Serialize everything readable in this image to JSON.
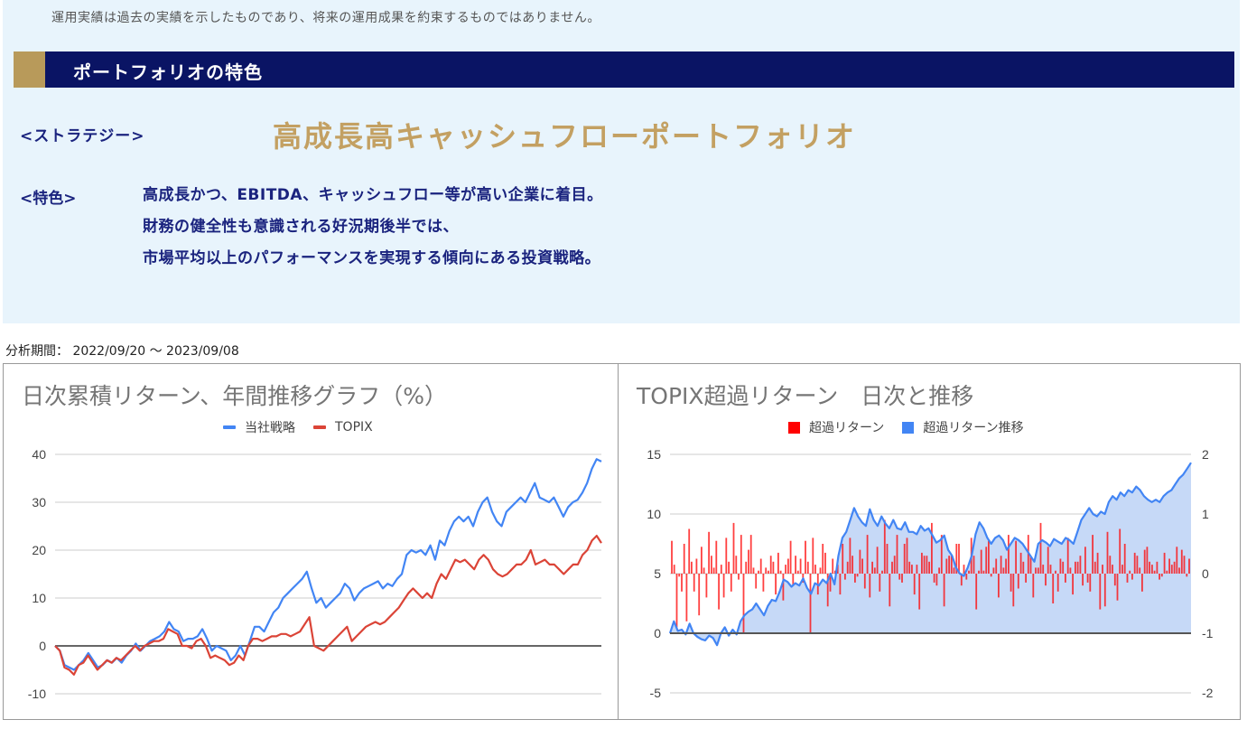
{
  "disclaimer": "運用実績は過去の実績を示したものであり、将来の運用成果を約束するものではありません。",
  "section": {
    "title": "ポートフォリオの特色",
    "colors": {
      "bar": "#0a1464",
      "accent": "#b89a5a"
    }
  },
  "strategy": {
    "label": "<ストラテジー>",
    "name": "高成長高キャッシュフローポートフォリオ"
  },
  "features": {
    "label": "<特色>",
    "lines": [
      "高成長かつ、EBITDA、キャッシュフロー等が高い企業に着目。",
      "財務の健全性も意識される好況期後半では、",
      "市場平均以上のパフォーマンスを実現する傾向にある投資戦略。"
    ]
  },
  "period": "分析期間： 2022/09/20 ～ 2023/09/08",
  "chart_data": [
    {
      "type": "line",
      "title": "日次累積リターン、年間推移グラフ（%）",
      "xlabel": "",
      "ylabel": "",
      "ylim": [
        -10,
        40
      ],
      "yticks": [
        "40",
        "30",
        "20",
        "10",
        "0",
        "-10"
      ],
      "grid": true,
      "legend_position": "top",
      "legend": [
        "当社戦略",
        "TOPIX"
      ],
      "x_range": [
        "2022/09/20",
        "2023/09/08"
      ],
      "series": [
        {
          "name": "当社戦略",
          "color": "#4285f4",
          "values": [
            0,
            -1,
            -4,
            -4.5,
            -5,
            -4,
            -3,
            -1.5,
            -3,
            -4.5,
            -4,
            -3,
            -3.5,
            -2.5,
            -3.5,
            -2,
            -1,
            0.5,
            -1,
            0,
            1,
            1.5,
            2,
            3,
            5,
            3.5,
            3,
            1,
            1.5,
            1.5,
            2,
            3.5,
            1.5,
            -1,
            0,
            -0.5,
            -1,
            -3,
            -2,
            0,
            -2,
            1,
            4,
            4,
            3,
            5,
            7,
            8,
            10,
            11,
            12,
            13,
            14,
            15.5,
            12,
            9,
            10,
            8,
            9,
            10,
            11,
            13,
            12,
            9.5,
            11,
            12,
            12.5,
            13,
            13.5,
            12,
            13,
            12.5,
            14,
            15,
            19,
            20,
            19.5,
            20,
            19,
            21,
            18,
            22,
            21,
            24,
            26,
            27,
            26,
            27,
            25,
            28,
            30,
            31,
            28,
            26,
            25,
            28,
            29,
            30,
            31,
            30,
            32,
            34,
            31,
            30.5,
            30,
            31,
            29,
            27,
            29,
            30,
            30.5,
            32,
            34,
            37,
            39,
            38.5
          ]
        },
        {
          "name": "TOPIX",
          "color": "#db4437",
          "values": [
            0,
            -1,
            -4.5,
            -5,
            -6,
            -4,
            -3.5,
            -2,
            -3.5,
            -5,
            -4,
            -3,
            -3.5,
            -2.5,
            -3,
            -2,
            -1,
            0,
            -1,
            0,
            0.5,
            1,
            1,
            1.5,
            3.5,
            3,
            2.5,
            0,
            0,
            -0.5,
            1,
            1.5,
            0,
            -2.5,
            -2,
            -2.5,
            -3,
            -4,
            -3.5,
            -2,
            -3,
            0,
            1.5,
            1.5,
            1,
            1.5,
            2,
            2,
            2.5,
            2.5,
            2,
            2.5,
            3,
            4.5,
            6,
            0,
            -0.5,
            -1,
            0,
            1,
            2,
            3,
            4,
            1,
            2,
            3,
            4,
            4.5,
            5,
            4.5,
            5,
            6,
            7,
            8,
            9.5,
            11,
            12,
            11,
            10,
            11,
            10,
            13,
            15,
            14,
            16,
            18,
            17.5,
            18,
            17,
            16,
            18,
            19,
            18,
            16,
            15,
            14.5,
            15,
            16,
            17,
            17,
            18,
            20,
            17,
            17.5,
            18,
            17,
            17,
            16,
            15,
            16,
            17,
            17,
            19,
            20,
            22,
            23,
            21.5
          ]
        }
      ]
    },
    {
      "type": "bar+area",
      "title": "TOPIX超過リターン　日次と推移",
      "legend": [
        "超過リターン",
        "超過リターン推移"
      ],
      "legend_position": "top",
      "grid": true,
      "left_axis": {
        "ylim": [
          -5,
          15
        ],
        "yticks": [
          "15",
          "10",
          "5",
          "0",
          "-5"
        ]
      },
      "right_axis": {
        "ylim": [
          -2,
          2
        ],
        "yticks": [
          "2",
          "1",
          "0",
          "-1",
          "-2"
        ]
      },
      "series": [
        {
          "name": "超過リターン",
          "type": "bar",
          "axis": "right",
          "color": "#ff0000",
          "values": [
            0.55,
            0.15,
            -0.9,
            -0.05,
            -0.3,
            0.5,
            -0.8,
            0.75,
            0.2,
            -0.3,
            0.25,
            -0.7,
            0.45,
            0.1,
            -0.4,
            0.7,
            0.3,
            0.1,
            0.55,
            -0.6,
            0.15,
            -0.4,
            0.6,
            0.2,
            -0.3,
            0.85,
            0.3,
            -0.1,
            0.65,
            -1.0,
            0.2,
            0.4,
            0.65,
            0.1,
            -0.25,
            0.05,
            0.25,
            -0.3,
            0.1,
            0.05,
            0.3,
            0.2,
            -0.35,
            0.35,
            0.05,
            -0.45,
            0.15,
            0.25,
            0.55,
            -0.2,
            0.3,
            0.05,
            0.25,
            -0.15,
            0.55,
            0.2,
            -1.0,
            0.6,
            0.15,
            -0.35,
            0.1,
            0.5,
            0.35,
            -0.55,
            -0.3,
            0.25,
            0.05,
            0.15,
            -0.35,
            0.5,
            -0.1,
            0.2,
            0.6,
            0.3,
            -0.15,
            -0.05,
            0.4,
            0.25,
            -0.25,
            0.65,
            -0.4,
            0.2,
            0.1,
            0.45,
            -0.3,
            0.05,
            0.9,
            0.5,
            -0.55,
            0.2,
            0.3,
            0.65,
            -0.1,
            -0.15,
            0.5,
            0.6,
            0.2,
            0.15,
            -0.35,
            0.15,
            -0.6,
            0.35,
            0.3,
            0.3,
            0.2,
            0.85,
            -0.15,
            -0.2,
            0.1,
            0.65,
            -0.55,
            0.25,
            0.3,
            0.3,
            0.1,
            0.5,
            0.5,
            -0.2,
            0.15,
            -0.1,
            0.05,
            0.6,
            0.3,
            -0.6,
            0.05,
            0.4,
            0.05,
            0.45,
            0.55,
            -0.05,
            0.1,
            0.25,
            -0.4,
            0.3,
            0.1,
            0.25,
            0.65,
            -0.3,
            -0.55,
            0.55,
            -0.25,
            0.35,
            0.2,
            -0.15,
            0.65,
            0.3,
            -0.4,
            0.1,
            0.1,
            0.85,
            0.15,
            -0.2,
            0.45,
            0.15,
            -0.5,
            0.05,
            -0.3,
            0.25,
            0.2,
            -0.15,
            0.6,
            0.1,
            -0.35,
            0.2,
            0.2,
            0.3,
            -0.2,
            0.45,
            -0.15,
            -0.3,
            0.65,
            0.2,
            0.35,
            -0.6,
            0.15,
            -0.55,
            0.7,
            0.3,
            0.15,
            -0.2,
            -0.45,
            0.75,
            0.15,
            0.5,
            -0.15,
            0.05,
            -0.1,
            0.35,
            0.3,
            0.1,
            -0.3,
            0.4,
            0.45,
            0.2,
            0.15,
            0.05,
            0.2,
            -0.1,
            -0.05,
            0.35,
            0.05,
            0.25,
            0.15,
            0.2,
            0.45,
            0.1,
            0.4,
            0.3,
            -0.05,
            0.25
          ]
        },
        {
          "name": "超過リターン推移",
          "type": "area",
          "axis": "left",
          "color": "#4285f4",
          "fill": "#c6d9f7",
          "values": [
            0,
            1,
            0.2,
            0.3,
            -0.1,
            0.8,
            0,
            -0.3,
            -0.5,
            -0.6,
            -0.2,
            -0.4,
            -1.0,
            0,
            0.5,
            -0.2,
            0.3,
            -0.1,
            1,
            1.5,
            1.8,
            2,
            2.5,
            2,
            1.5,
            2.3,
            2.8,
            2.7,
            3.5,
            4.5,
            4.3,
            3.9,
            4.2,
            4.0,
            4.6,
            3.8,
            3.3,
            4.2,
            4.0,
            4.5,
            4.2,
            5.0,
            4.1,
            6.5,
            8.0,
            8.5,
            9.5,
            10.5,
            9.8,
            9.3,
            9.0,
            10.4,
            9.5,
            9.0,
            9.8,
            9.2,
            8.8,
            9.5,
            8.8,
            8.7,
            9.3,
            8.5,
            8.5,
            8.3,
            9.0,
            8.6,
            8.8,
            8.2,
            7.6,
            7.8,
            8.2,
            7.0,
            6.5,
            5.5,
            5.0,
            4.8,
            5.5,
            6.5,
            8.3,
            9.3,
            8.8,
            8.0,
            7.5,
            8.0,
            8.2,
            7.8,
            7.0,
            7.5,
            8.0,
            7.8,
            7.5,
            7.0,
            6.5,
            6.0,
            7.5,
            7.8,
            7.6,
            7.3,
            7.9,
            7.7,
            7.5,
            8.0,
            7.8,
            7.5,
            8.5,
            9.5,
            10.0,
            10.5,
            10.0,
            9.8,
            10.2,
            10.0,
            11.0,
            11.5,
            11.2,
            11.8,
            11.5,
            12.0,
            11.8,
            12.3,
            12.0,
            11.5,
            11.2,
            11.0,
            11.2,
            11.0,
            11.5,
            11.8,
            12.0,
            12.5,
            13.0,
            13.3,
            13.8,
            14.3
          ]
        }
      ]
    }
  ]
}
